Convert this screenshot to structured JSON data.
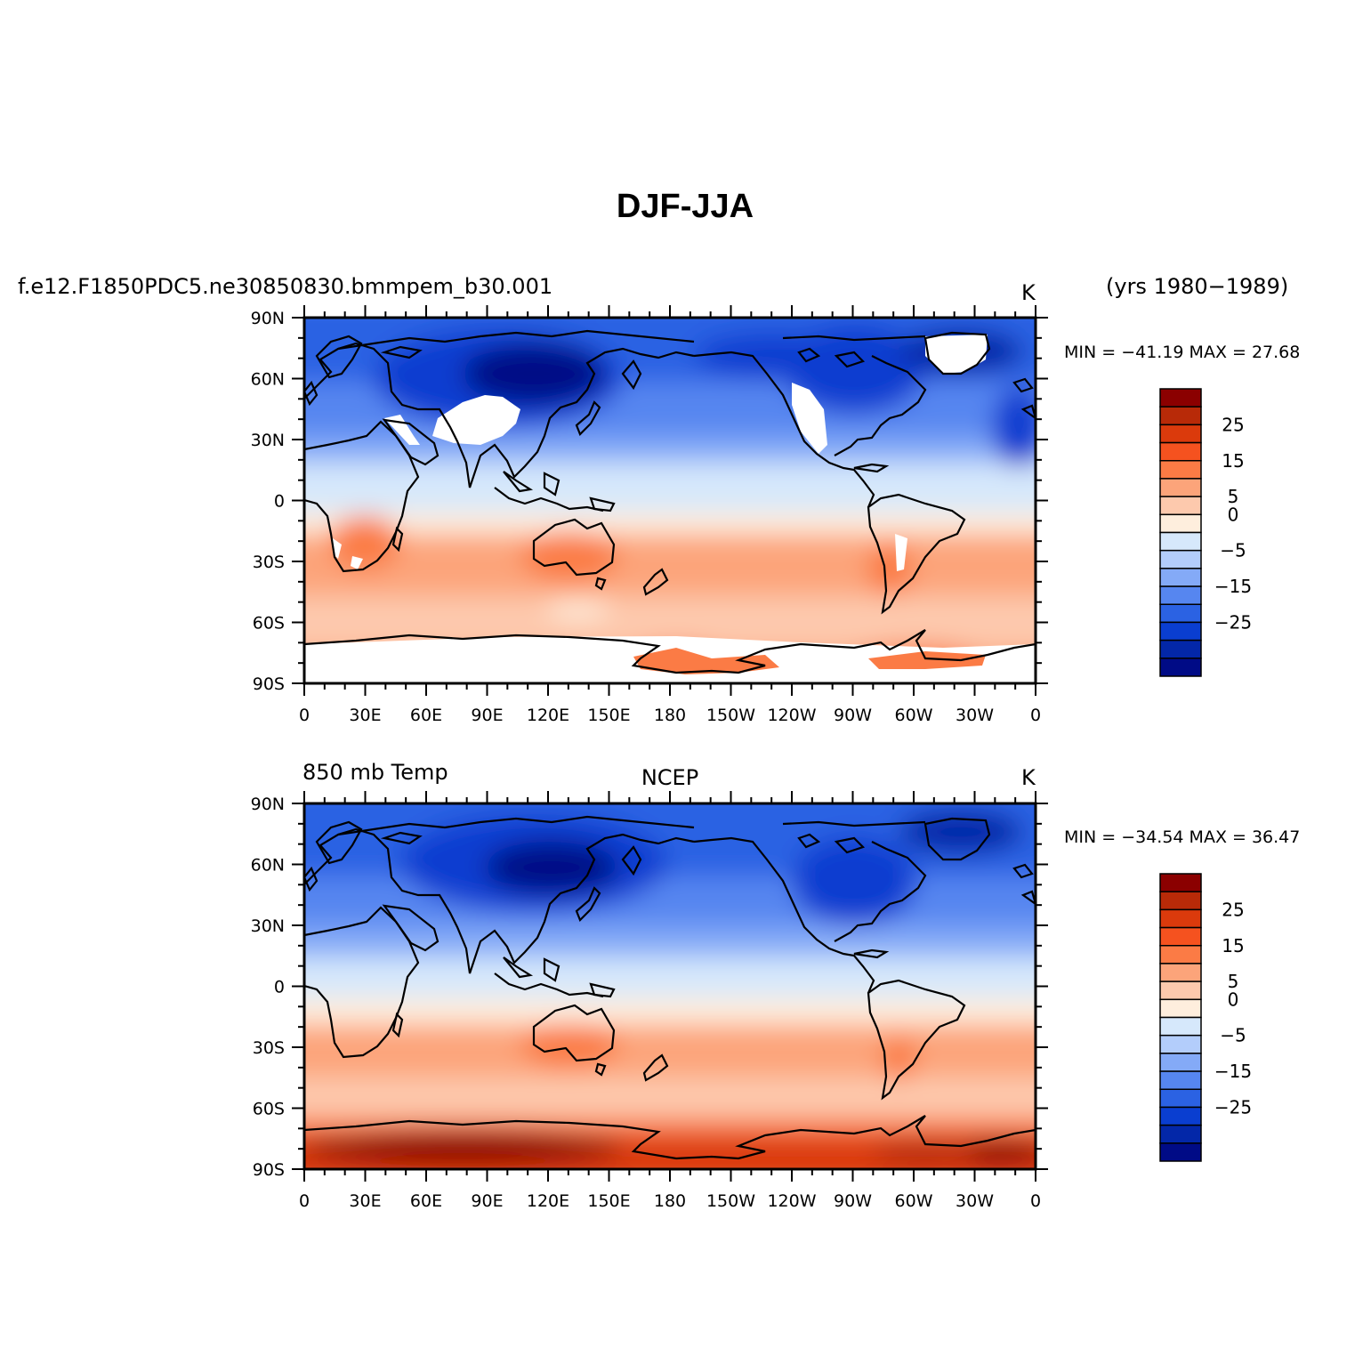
{
  "figure": {
    "title": "DJF-JJA",
    "lon_labels": [
      "0",
      "30E",
      "60E",
      "90E",
      "120E",
      "150E",
      "180",
      "150W",
      "120W",
      "90W",
      "60W",
      "30W",
      "0"
    ],
    "lat_labels": [
      "90N",
      "60N",
      "30N",
      "0",
      "30S",
      "60S",
      "90S"
    ]
  },
  "colorbar": {
    "colors": [
      "#8b0000",
      "#b82a08",
      "#db3a0c",
      "#f5521f",
      "#fb7b45",
      "#fca47a",
      "#fdc9ad",
      "#feeedd",
      "#d6e8fb",
      "#b3cdfb",
      "#84aaf7",
      "#5686f0",
      "#2b62e3",
      "#0a3ed0",
      "#0327a8",
      "#000b86"
    ],
    "labels": [
      "25",
      "15",
      "5",
      "0",
      "−5",
      "−15",
      "−25"
    ]
  },
  "panels": [
    {
      "left_title": "f.e12.F1850PDC5.ne30850830.bmmpem_b30.001",
      "center_title": "",
      "units": "K",
      "years": "(yrs 1980−1989)",
      "min_max": "MIN = −41.19 MAX =  27.68"
    },
    {
      "left_title": "850  mb  Temp",
      "center_title": "NCEP",
      "units": "K",
      "years": "",
      "min_max": "MIN = −34.54 MAX =  36.47"
    }
  ],
  "chart_data": [
    {
      "type": "heatmap",
      "title": "DJF-JJA",
      "subtitle": "f.e12.F1850PDC5.ne30850830.bmmpem_b30.001",
      "units": "K",
      "period": "(yrs 1980−1989)",
      "min": -41.19,
      "max": 27.68,
      "x_range": [
        0,
        360
      ],
      "y_range": [
        -90,
        90
      ],
      "levels": [
        -35,
        -30,
        -25,
        -20,
        -15,
        -10,
        -5,
        -2.5,
        0,
        2.5,
        5,
        10,
        15,
        20,
        25,
        30
      ],
      "zonal_mean_profile": {
        "lat": [
          90,
          75,
          60,
          45,
          30,
          15,
          0,
          -15,
          -30,
          -45,
          -60,
          -75,
          -90
        ],
        "value": [
          -30,
          -28,
          -25,
          -18,
          -10,
          -4,
          -1,
          3,
          8,
          6,
          4,
          9,
          9
        ]
      }
    },
    {
      "type": "heatmap",
      "title": "NCEP",
      "subtitle": "850  mb  Temp",
      "units": "K",
      "min": -34.54,
      "max": 36.47,
      "x_range": [
        0,
        360
      ],
      "y_range": [
        -90,
        90
      ],
      "levels": [
        -35,
        -30,
        -25,
        -20,
        -15,
        -10,
        -5,
        -2.5,
        0,
        2.5,
        5,
        10,
        15,
        20,
        25,
        30
      ],
      "zonal_mean_profile": {
        "lat": [
          90,
          75,
          60,
          45,
          30,
          15,
          0,
          -15,
          -30,
          -45,
          -60,
          -75,
          -90
        ],
        "value": [
          -20,
          -22,
          -25,
          -20,
          -12,
          -5,
          -1,
          3,
          8,
          6,
          8,
          25,
          30
        ]
      }
    }
  ]
}
